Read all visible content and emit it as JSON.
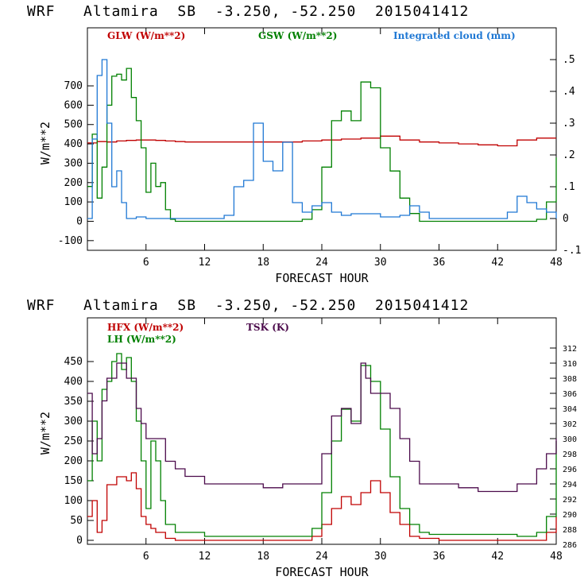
{
  "chart_data": [
    {
      "type": "line",
      "title": "WRF   Altamira  SB  -3.250, -52.250  2015041412",
      "xlabel": "FORECAST HOUR",
      "ylabel": "W/m**2",
      "xlim": [
        0,
        48
      ],
      "ylim": [
        -150,
        1000
      ],
      "y2lim": [
        -0.1,
        0.6
      ],
      "xticks": [
        "6",
        "12",
        "18",
        "24",
        "30",
        "36",
        "42",
        "48"
      ],
      "yticks": [
        "700",
        "600",
        "500",
        "400",
        "300",
        "200",
        "100",
        "0",
        "-100"
      ],
      "y2ticks": [
        ".5",
        ".4",
        ".3",
        ".2",
        ".1",
        "0",
        "-.1"
      ],
      "grid": false,
      "series": [
        {
          "name": "GLW (W/m**2)",
          "color": "#c00000",
          "axis": "left",
          "x": [
            0,
            1,
            2,
            3,
            4,
            5,
            6,
            7,
            8,
            9,
            10,
            12,
            14,
            16,
            18,
            20,
            22,
            24,
            26,
            28,
            30,
            32,
            34,
            36,
            38,
            40,
            42,
            44,
            46,
            48
          ],
          "values": [
            405,
            412,
            410,
            415,
            418,
            420,
            420,
            418,
            415,
            412,
            410,
            410,
            410,
            410,
            410,
            410,
            415,
            420,
            425,
            430,
            440,
            420,
            410,
            405,
            400,
            395,
            390,
            420,
            430,
            430
          ]
        },
        {
          "name": "GSW (W/m**2)",
          "color": "#008000",
          "axis": "left",
          "x": [
            0,
            0.5,
            1,
            1.5,
            2,
            2.5,
            3,
            3.5,
            4,
            4.5,
            5,
            5.5,
            6,
            6.5,
            7,
            7.5,
            8,
            8.5,
            9,
            12,
            18,
            21,
            22,
            23,
            24,
            25,
            26,
            27,
            28,
            29,
            30,
            31,
            32,
            33,
            34,
            35,
            42,
            44,
            46,
            47,
            48
          ],
          "values": [
            180,
            450,
            120,
            280,
            600,
            750,
            760,
            730,
            790,
            640,
            520,
            380,
            150,
            300,
            180,
            200,
            60,
            10,
            0,
            0,
            0,
            0,
            10,
            60,
            280,
            520,
            570,
            520,
            720,
            690,
            380,
            260,
            120,
            40,
            0,
            0,
            0,
            0,
            10,
            100,
            330
          ]
        },
        {
          "name": "Integrated cloud (mm)",
          "color": "#1f78d4",
          "axis": "right",
          "x": [
            0,
            0.5,
            1,
            1.5,
            2,
            2.5,
            3,
            3.5,
            4,
            5,
            6,
            8,
            10,
            13,
            14,
            15,
            16,
            17,
            18,
            19,
            20,
            21,
            22,
            23,
            24,
            25,
            26,
            27,
            30,
            32,
            33,
            34,
            35,
            36,
            42,
            43,
            44,
            45,
            46,
            47,
            48
          ],
          "values": [
            0,
            0.25,
            0.45,
            0.5,
            0.3,
            0.1,
            0.15,
            0.05,
            0,
            0.005,
            0,
            0,
            0,
            0,
            0.01,
            0.1,
            0.12,
            0.3,
            0.18,
            0.15,
            0.24,
            0.05,
            0.02,
            0.04,
            0.05,
            0.02,
            0.01,
            0.015,
            0.005,
            0.01,
            0.04,
            0.02,
            0,
            0,
            0,
            0.02,
            0.07,
            0.05,
            0.03,
            0.02,
            0
          ]
        }
      ]
    },
    {
      "type": "line",
      "title": "WRF   Altamira  SB  -3.250, -52.250  2015041412",
      "xlabel": "FORECAST HOUR",
      "ylabel": "W/m**2",
      "xlim": [
        0,
        48
      ],
      "ylim": [
        -10,
        560
      ],
      "y2lim": [
        286,
        316
      ],
      "xticks": [
        "6",
        "12",
        "18",
        "24",
        "30",
        "36",
        "42",
        "48"
      ],
      "yticks": [
        "450",
        "400",
        "350",
        "300",
        "250",
        "200",
        "150",
        "100",
        "50",
        "0"
      ],
      "y2ticks": [
        "312",
        "310",
        "308",
        "306",
        "304",
        "302",
        "300",
        "298",
        "296",
        "294",
        "292",
        "290",
        "288",
        "286"
      ],
      "grid": false,
      "series": [
        {
          "name": "HFX (W/m**2)",
          "color": "#c00000",
          "axis": "left",
          "x": [
            0,
            0.5,
            1,
            1.5,
            2,
            3,
            4,
            4.5,
            5,
            5.5,
            6,
            6.5,
            7,
            8,
            9,
            12,
            18,
            22,
            23,
            24,
            25,
            26,
            27,
            28,
            29,
            30,
            31,
            32,
            33,
            34,
            36,
            42,
            46,
            47,
            48
          ],
          "values": [
            60,
            100,
            20,
            50,
            140,
            160,
            150,
            170,
            130,
            60,
            40,
            30,
            20,
            5,
            0,
            0,
            0,
            0,
            10,
            40,
            80,
            110,
            90,
            120,
            150,
            120,
            70,
            40,
            10,
            5,
            0,
            0,
            0,
            20,
            60
          ]
        },
        {
          "name": "LH (W/m**2)",
          "color": "#008000",
          "axis": "left",
          "x": [
            0,
            0.5,
            1,
            1.5,
            2,
            2.5,
            3,
            3.5,
            4,
            4.5,
            5,
            5.5,
            6,
            6.5,
            7,
            7.5,
            8,
            9,
            12,
            18,
            22,
            23,
            24,
            25,
            26,
            27,
            28,
            29,
            30,
            31,
            32,
            33,
            34,
            35,
            42,
            44,
            46,
            47,
            48
          ],
          "values": [
            150,
            300,
            200,
            380,
            400,
            450,
            470,
            430,
            460,
            400,
            300,
            200,
            80,
            250,
            200,
            100,
            40,
            20,
            10,
            10,
            10,
            30,
            120,
            250,
            330,
            300,
            440,
            400,
            280,
            160,
            80,
            40,
            20,
            15,
            15,
            10,
            20,
            60,
            250
          ]
        },
        {
          "name": "TSK (K)",
          "color": "#4b0a4b",
          "axis": "right",
          "x": [
            0,
            0.5,
            1,
            1.5,
            2,
            3,
            4,
            5,
            5.5,
            6,
            7,
            8,
            9,
            10,
            12,
            14,
            16,
            18,
            20,
            22,
            24,
            25,
            26,
            27,
            28,
            28.5,
            29,
            30,
            31,
            32,
            33,
            34,
            36,
            38,
            40,
            42,
            44,
            46,
            47,
            48
          ],
          "values": [
            306,
            298,
            300,
            305,
            308,
            310,
            308,
            304,
            302,
            300,
            300,
            297,
            296,
            295,
            294,
            294,
            294,
            293.5,
            294,
            294,
            298,
            303,
            304,
            302,
            310,
            308,
            306,
            306,
            304,
            300,
            297,
            294,
            294,
            293.5,
            293,
            293,
            294,
            296,
            298,
            300
          ]
        }
      ]
    }
  ]
}
